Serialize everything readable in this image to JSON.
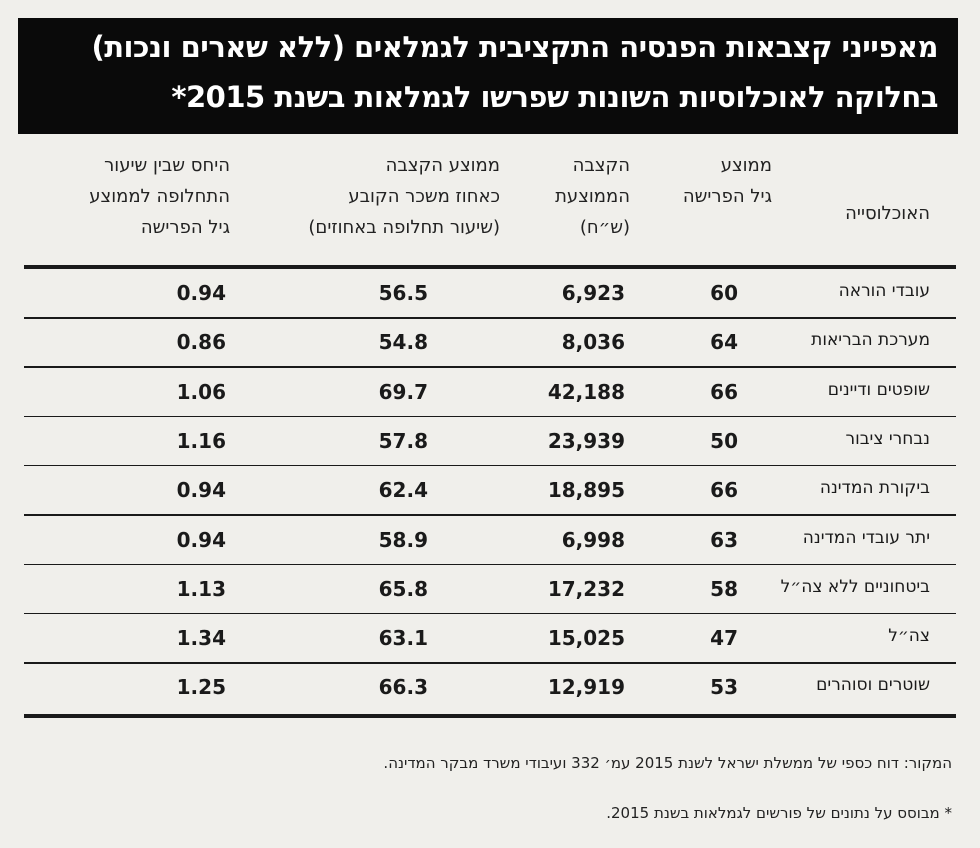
{
  "title": {
    "line1": "מאפייני קצבאות הפנסיה התקציבית לגמלאים (ללא שארים ונכות)",
    "line2": "בחלוקה לאוכלוסיות השונות שפרשו לגמלאות בשנת 2015*"
  },
  "table": {
    "header": [
      [
        "האוכלוסייה"
      ],
      [
        "ממוצע",
        "גיל הפרישה"
      ],
      [
        "הקצבה",
        "הממוצעת",
        "(ש״ח)"
      ],
      [
        "ממוצע הקצבה",
        "כאחוז משכר הקובע",
        "(שיעור תחלופה באחוזים)"
      ],
      [
        "היחס שבין שיעור",
        "התחלופה לממוצע",
        "גיל הפרישה"
      ]
    ],
    "rows": [
      [
        "עובדי הוראה",
        "60",
        "6,923",
        "56.5",
        "0.94"
      ],
      [
        "מערכת הבריאות",
        "64",
        "8,036",
        "54.8",
        "0.86"
      ],
      [
        "שופטים ודיינים",
        "66",
        "42,188",
        "69.7",
        "1.06"
      ],
      [
        "נבחרי ציבור",
        "50",
        "23,939",
        "57.8",
        "1.16"
      ],
      [
        "ביקורת המדינה",
        "66",
        "18,895",
        "62.4",
        "0.94"
      ],
      [
        "יתר עובדי המדינה",
        "63",
        "6,998",
        "58.9",
        "0.94"
      ],
      [
        "ביטחוניים ללא צה״ל",
        "58",
        "17,232",
        "65.8",
        "1.13"
      ],
      [
        "צה״ל",
        "47",
        "15,025",
        "63.1",
        "1.34"
      ],
      [
        "שוטרים וסוהרים",
        "53",
        "12,919",
        "66.3",
        "1.25"
      ]
    ]
  },
  "source": "המקור: דוח כספי של ממשלת ישראל לשנת 2015 עמ׳ 332 ועיבודי משרד מבקר המדינה.",
  "footnote": "* מבוסס על נתונים של פורשים לגמלאות בשנת 2015."
}
